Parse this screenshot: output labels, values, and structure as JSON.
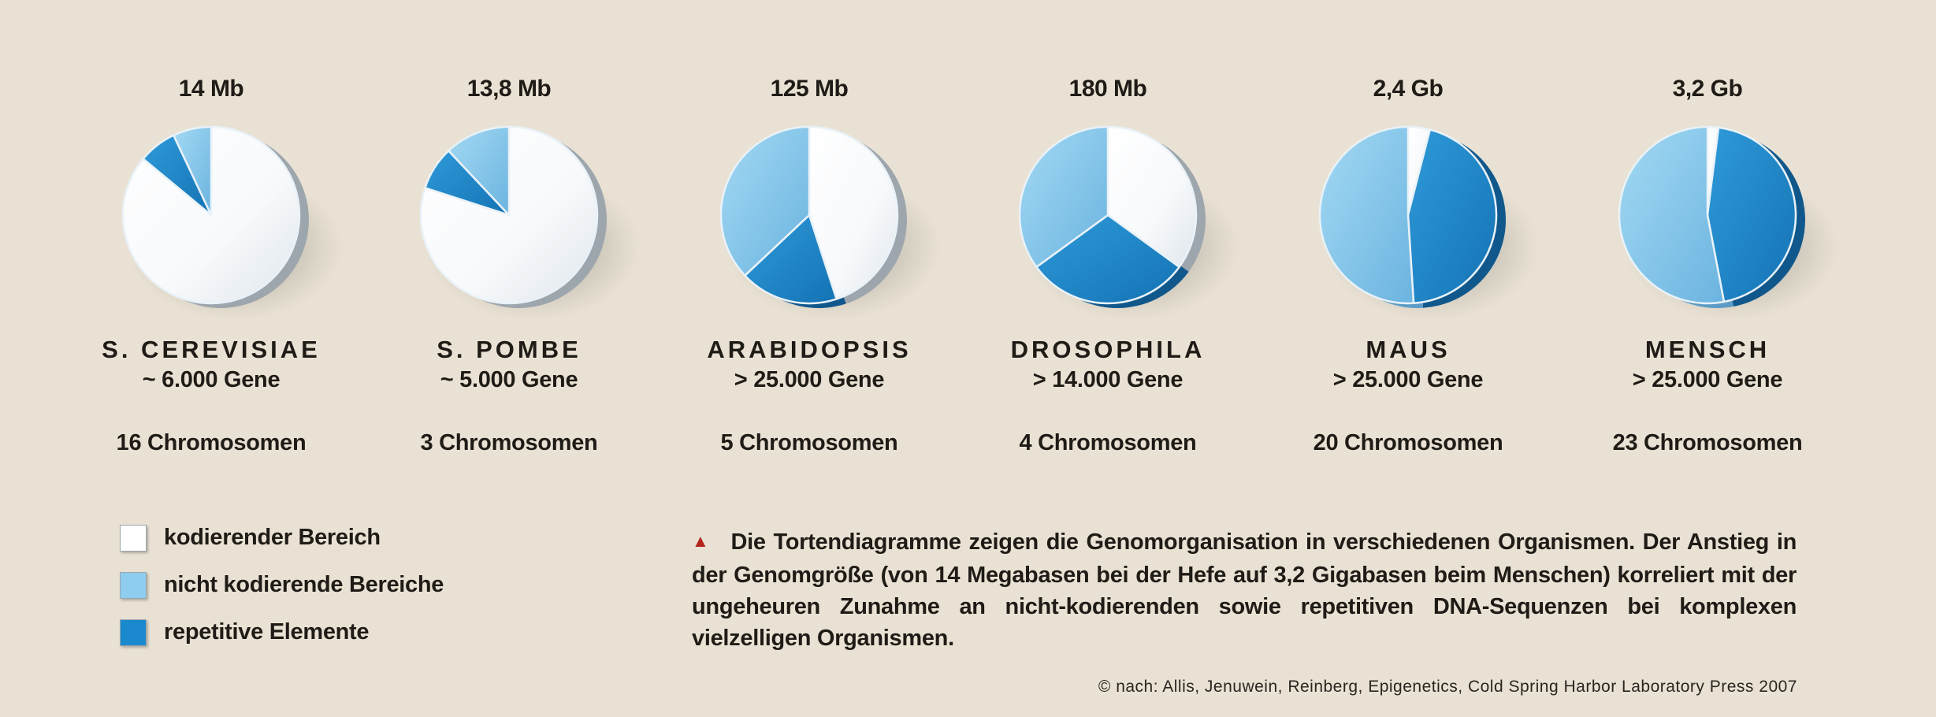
{
  "chart_data": {
    "type": "pie",
    "title": "",
    "slice_order": [
      "kodierender Bereich",
      "nicht kodierende Bereiche",
      "repetitive Elemente"
    ],
    "organisms": [
      {
        "name": "S. CEREVISIAE",
        "genome_size": "14 Mb",
        "genes": "~ 6.000 Gene",
        "chromosomes": "16 Chromosomen",
        "values": [
          86,
          7,
          7
        ]
      },
      {
        "name": "S. POMBE",
        "genome_size": "13,8 Mb",
        "genes": "~ 5.000 Gene",
        "chromosomes": "3 Chromosomen",
        "values": [
          80,
          12,
          8
        ]
      },
      {
        "name": "ARABIDOPSIS",
        "genome_size": "125 Mb",
        "genes": "> 25.000 Gene",
        "chromosomes": "5 Chromosomen",
        "values": [
          45,
          37,
          18
        ]
      },
      {
        "name": "DROSOPHILA",
        "genome_size": "180 Mb",
        "genes": "> 14.000 Gene",
        "chromosomes": "4 Chromosomen",
        "values": [
          35,
          35,
          30
        ]
      },
      {
        "name": "MAUS",
        "genome_size": "2,4 Gb",
        "genes": "> 25.000 Gene",
        "chromosomes": "20 Chromosomen",
        "values": [
          4,
          51,
          45
        ]
      },
      {
        "name": "MENSCH",
        "genome_size": "3,2 Gb",
        "genes": "> 25.000 Gene",
        "chromosomes": "23 Chromosomen",
        "values": [
          2,
          53,
          45
        ]
      }
    ]
  },
  "legend": [
    {
      "label": "kodierender Bereich",
      "color": "#ffffff"
    },
    {
      "label": "nicht kodierende Bereiche",
      "color": "#8fcdee"
    },
    {
      "label": "repetitive Elemente",
      "color": "#1a88cc"
    }
  ],
  "colors": {
    "background": "#e9e2d4",
    "coding": "#ffffff",
    "noncoding": "#8fcdee",
    "repetitive": "#1a88cc",
    "marker": "#b3241e"
  },
  "caption": {
    "marker": "▲",
    "text": "Die Tortendiagramme zeigen die Genomorganisation in verschiedenen Organismen. Der Anstieg in der Genomgröße (von 14 Megabasen bei der Hefe auf 3,2 Gigabasen beim Menschen) korreliert mit der ungeheuren Zunahme an nicht-kodierenden sowie repetitiven DNA-Sequenzen bei komplexen vielzelligen Organismen."
  },
  "credit": "© nach: Allis, Jenuwein, Reinberg, Epigenetics, Cold Spring Harbor Laboratory Press 2007"
}
